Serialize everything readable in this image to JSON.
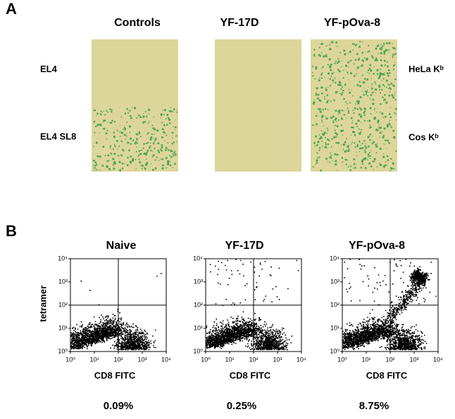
{
  "panel_a": {
    "label": "A",
    "columns": [
      "Controls",
      "YF-17D",
      "YF-pOva-8"
    ],
    "rows_left": [
      "EL4",
      "EL4 SL8"
    ],
    "rows_right": [
      "HeLa Kᵇ",
      "Cos Kᵇ"
    ]
  },
  "panel_b": {
    "label": "B",
    "y_label": "tetramer",
    "x_label": "CD8 FITC",
    "ticks": [
      {
        "value": 1,
        "label": "10⁰"
      },
      {
        "value": 10,
        "label": "10¹"
      },
      {
        "value": 100,
        "label": "10²"
      },
      {
        "value": 1000,
        "label": "10³"
      },
      {
        "value": 10000,
        "label": "10⁴"
      }
    ],
    "plots": [
      {
        "title": "Naive",
        "percent": "0.09%"
      },
      {
        "title": "YF-17D",
        "percent": "0.25%"
      },
      {
        "title": "YF-pOva-8",
        "percent": "8.75%"
      }
    ]
  }
}
